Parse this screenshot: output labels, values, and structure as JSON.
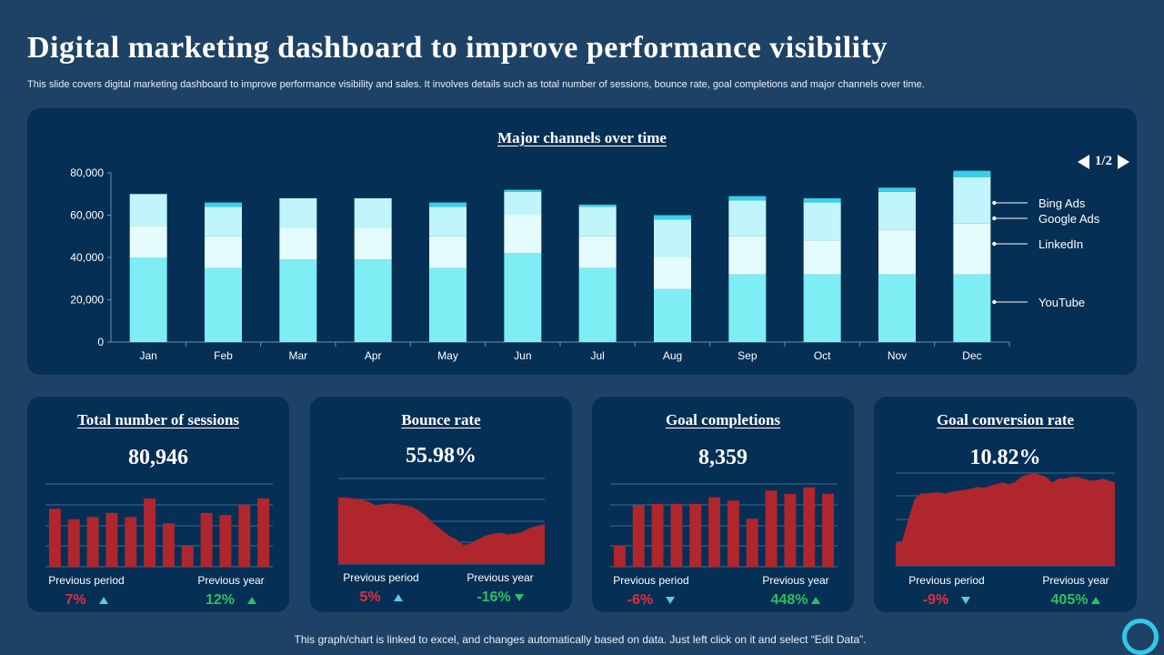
{
  "header": {
    "title": "Digital marketing dashboard to improve performance visibility",
    "subtitle": "This slide covers digital marketing dashboard to improve performance visibility and sales. It involves details such as total number of sessions, bounce rate, goal completions and major channels over time."
  },
  "pager": {
    "label": "1/2"
  },
  "colors": {
    "background": "#1e4266",
    "panel": "#062f55",
    "youtube": "#7eedf4",
    "linkedin": "#e5fcfe",
    "google": "#c0f5fb",
    "bing": "#38cfe8",
    "kpi_bar": "#b0262d",
    "grid": "#3e6a91",
    "red": "#e0303c",
    "green": "#2fbf62",
    "up_arrow": "#5cc8ea"
  },
  "chart_data": [
    {
      "type": "bar",
      "stacked": true,
      "title": "Major channels over time",
      "categories": [
        "Jan",
        "Feb",
        "Mar",
        "Apr",
        "May",
        "Jun",
        "Jul",
        "Aug",
        "Sep",
        "Oct",
        "Nov",
        "Dec"
      ],
      "ylim": [
        0,
        80000
      ],
      "yticks": [
        0,
        20000,
        40000,
        60000,
        80000
      ],
      "ytick_labels": [
        "0",
        "20,000",
        "40,000",
        "60,000",
        "80,000"
      ],
      "legend_position": "right",
      "series": [
        {
          "name": "YouTube",
          "values": [
            40000,
            35000,
            39000,
            39000,
            35000,
            42000,
            35000,
            25000,
            32000,
            32000,
            32000,
            32000
          ]
        },
        {
          "name": "LinkedIn",
          "values": [
            15000,
            15000,
            15000,
            15000,
            15000,
            18000,
            15000,
            15000,
            18000,
            16000,
            21000,
            24000
          ]
        },
        {
          "name": "Google Ads",
          "values": [
            15000,
            14000,
            14000,
            14000,
            14000,
            11000,
            14000,
            18000,
            17000,
            18000,
            18000,
            22000
          ]
        },
        {
          "name": "Bing Ads",
          "values": [
            0,
            2000,
            0,
            0,
            2000,
            1000,
            1000,
            2000,
            2000,
            2000,
            2000,
            3000
          ]
        }
      ]
    },
    {
      "type": "bar",
      "title": "Total number of sessions",
      "ylim": [
        0,
        40
      ],
      "values": [
        28,
        23,
        24,
        26,
        24,
        33,
        21,
        10,
        26,
        25,
        30,
        33
      ]
    },
    {
      "type": "area",
      "title": "Bounce rate",
      "ylim": [
        0,
        45
      ],
      "values": [
        35,
        35,
        34.5,
        34,
        33,
        31,
        31.5,
        32,
        31.5,
        31,
        30,
        28,
        25,
        21,
        18,
        15,
        13,
        10,
        11,
        13,
        15,
        16,
        16.5,
        15.5,
        16,
        17,
        19,
        20,
        21
      ]
    },
    {
      "type": "bar",
      "title": "Goal completions",
      "ylim": [
        0,
        50
      ],
      "values": [
        13,
        37,
        38,
        38,
        38,
        42,
        40,
        29,
        46,
        44,
        48,
        44
      ]
    },
    {
      "type": "area",
      "title": "Goal conversion rate",
      "ylim": [
        0,
        50
      ],
      "values": [
        12,
        13,
        25,
        36,
        39,
        39,
        39.5,
        39.5,
        39,
        40,
        40.5,
        41,
        41.5,
        42.5,
        42,
        43,
        44,
        45,
        44,
        45,
        48,
        49,
        50,
        49,
        48,
        45,
        47,
        47,
        48,
        48,
        47,
        46,
        46,
        47,
        46,
        45
      ]
    }
  ],
  "kpis": [
    {
      "title": "Total number of sessions",
      "value": "80,946",
      "prev_period": {
        "label": "Previous period",
        "pct": "7%",
        "tone": "red",
        "dir": "up"
      },
      "prev_year": {
        "label": "Previous year",
        "pct": "12%",
        "tone": "green",
        "dir": "up"
      }
    },
    {
      "title": "Bounce rate",
      "value": "55.98%",
      "prev_period": {
        "label": "Previous period",
        "pct": "5%",
        "tone": "red",
        "dir": "up"
      },
      "prev_year": {
        "label": "Previous year",
        "pct": "-16%",
        "tone": "green",
        "dir": "down"
      }
    },
    {
      "title": "Goal completions",
      "value": "8,359",
      "prev_period": {
        "label": "Previous period",
        "pct": "-6%",
        "tone": "red",
        "dir": "down"
      },
      "prev_year": {
        "label": "Previous year",
        "pct": "448%",
        "tone": "green",
        "dir": "up"
      }
    },
    {
      "title": "Goal conversion rate",
      "value": "10.82%",
      "prev_period": {
        "label": "Previous period",
        "pct": "-9%",
        "tone": "red",
        "dir": "down"
      },
      "prev_year": {
        "label": "Previous year",
        "pct": "405%",
        "tone": "green",
        "dir": "up"
      }
    }
  ],
  "footer": {
    "note": "This graph/chart is linked to excel,  and changes automatically based on data. Just left click on it and select “Edit Data”."
  }
}
